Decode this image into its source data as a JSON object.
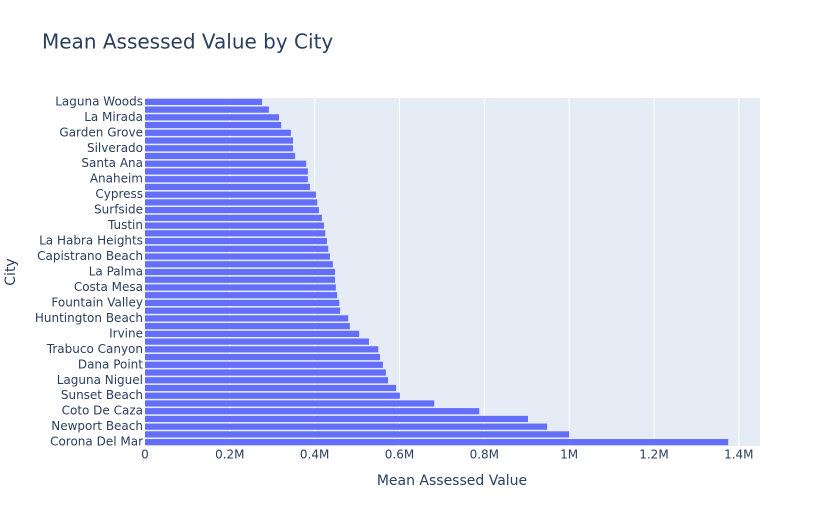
{
  "chart_data": {
    "type": "hbar",
    "title": "Mean Assessed Value by City",
    "xlabel": "Mean Assessed Value",
    "ylabel": "City",
    "categories": [
      "Laguna Woods",
      null,
      "La Mirada",
      null,
      "Garden Grove",
      null,
      "Silverado",
      null,
      "Santa Ana",
      null,
      "Anaheim",
      null,
      "Cypress",
      null,
      "Surfside",
      null,
      "Tustin",
      null,
      "La Habra Heights",
      null,
      "Capistrano Beach",
      null,
      "La Palma",
      null,
      "Costa Mesa",
      null,
      "Fountain Valley",
      null,
      "Huntington Beach",
      null,
      "Irvine",
      null,
      "Trabuco Canyon",
      null,
      "Dana Point",
      null,
      "Laguna Niguel",
      null,
      "Sunset Beach",
      null,
      "Coto De Caza",
      null,
      "Newport Beach",
      null,
      "Corona Del Mar"
    ],
    "values": [
      276000,
      292000,
      316000,
      321000,
      344000,
      349000,
      349000,
      354000,
      380000,
      384000,
      384000,
      389000,
      403000,
      406000,
      410000,
      417000,
      422000,
      425000,
      429000,
      432000,
      436000,
      443000,
      448000,
      448000,
      450000,
      453000,
      458000,
      460000,
      479000,
      483000,
      505000,
      528000,
      550000,
      554000,
      561000,
      568000,
      573000,
      592000,
      601000,
      682000,
      788000,
      903000,
      948000,
      1000000,
      1375000
    ],
    "color": "#636efa",
    "xlim": [
      0,
      1450000
    ],
    "xticks": [
      0,
      {
        "value": 200000,
        "label": "0.2M"
      },
      {
        "value": 400000,
        "label": "0.4M"
      },
      {
        "value": 600000,
        "label": "0.6M"
      },
      {
        "value": 800000,
        "label": "0.8M"
      },
      {
        "value": 1000000,
        "label": "1M"
      },
      {
        "value": 1200000,
        "label": "1.2M"
      },
      {
        "value": 1400000,
        "label": "1.4M"
      }
    ],
    "grid": true
  }
}
